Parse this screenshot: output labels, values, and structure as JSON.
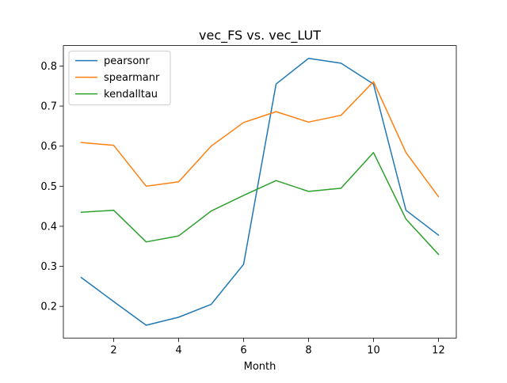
{
  "chart_data": {
    "type": "line",
    "title": "vec_FS vs. vec_LUT",
    "xlabel": "Month",
    "ylabel": "",
    "x": [
      1,
      2,
      3,
      4,
      5,
      6,
      7,
      8,
      9,
      10,
      11,
      12
    ],
    "xlim": [
      0.45,
      12.55
    ],
    "ylim": [
      0.121,
      0.851
    ],
    "xticks": [
      2,
      4,
      6,
      8,
      10,
      12
    ],
    "yticks": [
      0.2,
      0.3,
      0.4,
      0.5,
      0.6,
      0.7,
      0.8
    ],
    "grid": false,
    "legend_position": "top-left",
    "series": [
      {
        "name": "pearsonr",
        "color": "#1f77b4",
        "values": [
          0.272,
          0.212,
          0.153,
          0.173,
          0.205,
          0.305,
          0.755,
          0.819,
          0.807,
          0.755,
          0.44,
          0.378
        ]
      },
      {
        "name": "spearmanr",
        "color": "#ff7f0e",
        "values": [
          0.609,
          0.602,
          0.5,
          0.511,
          0.6,
          0.659,
          0.686,
          0.66,
          0.677,
          0.761,
          0.584,
          0.474
        ]
      },
      {
        "name": "kendalltau",
        "color": "#2ca02c",
        "values": [
          0.435,
          0.44,
          0.361,
          0.376,
          0.438,
          0.477,
          0.514,
          0.487,
          0.495,
          0.584,
          0.418,
          0.33
        ]
      }
    ]
  }
}
